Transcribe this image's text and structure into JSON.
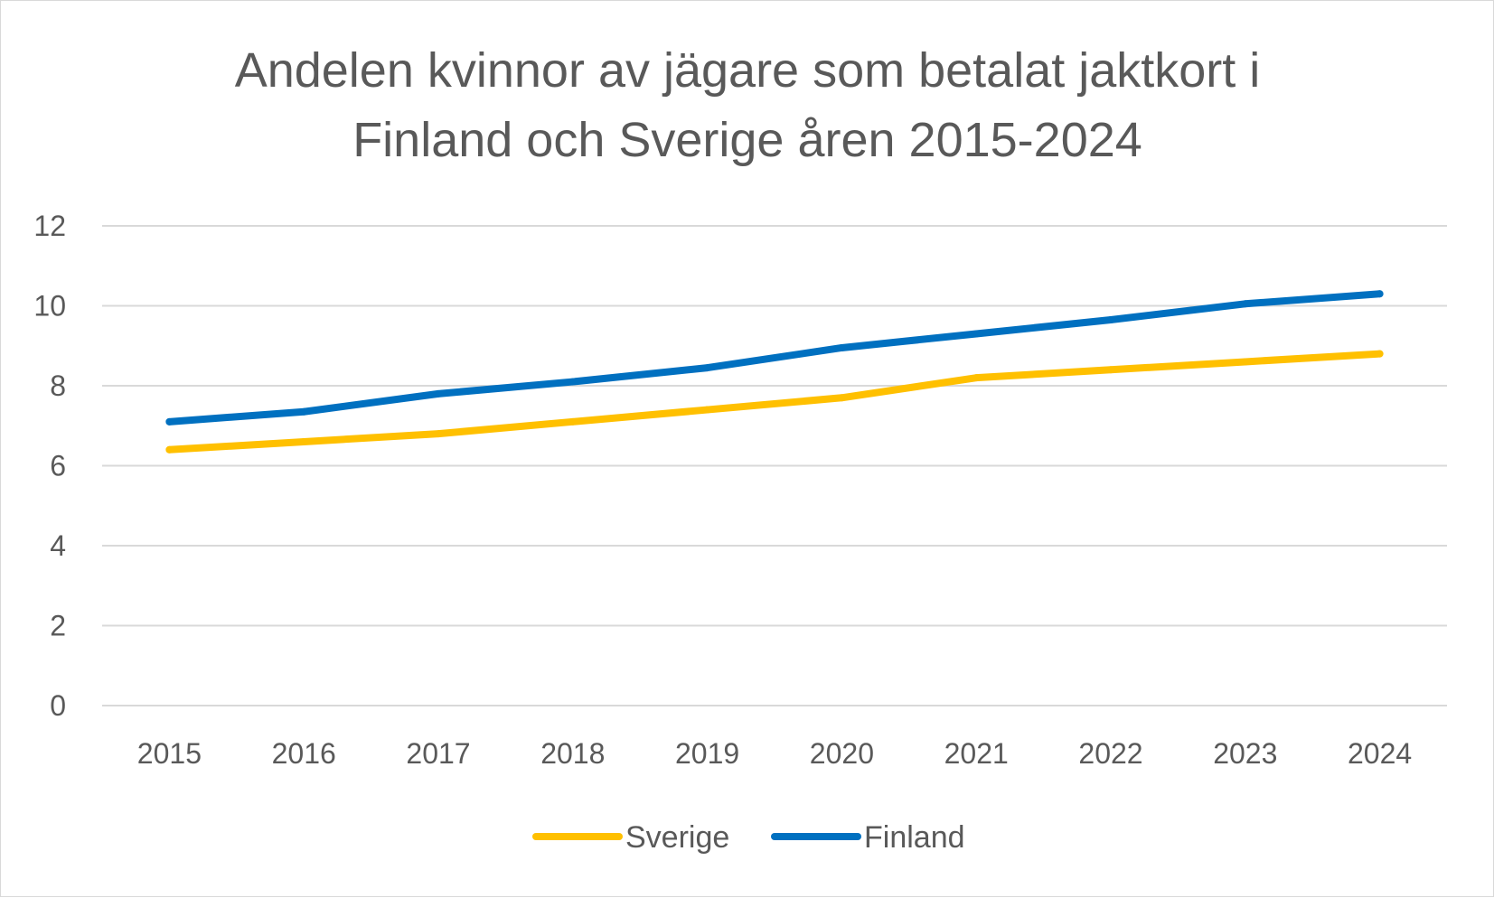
{
  "chart_data": {
    "type": "line",
    "title_lines": [
      "Andelen kvinnor av jägare som betalat jaktkort i",
      "Finland och Sverige åren 2015-2024"
    ],
    "categories": [
      "2015",
      "2016",
      "2017",
      "2018",
      "2019",
      "2020",
      "2021",
      "2022",
      "2023",
      "2024"
    ],
    "series": [
      {
        "name": "Sverige",
        "color": "#FFC000",
        "values": [
          6.4,
          6.6,
          6.8,
          7.1,
          7.4,
          7.7,
          8.2,
          8.4,
          8.6,
          8.8
        ]
      },
      {
        "name": "Finland",
        "color": "#0070C0",
        "values": [
          7.1,
          7.35,
          7.8,
          8.1,
          8.45,
          8.95,
          9.3,
          9.65,
          10.05,
          10.3
        ]
      }
    ],
    "ylim": [
      0,
      12
    ],
    "yticks": [
      "0",
      "2",
      "4",
      "6",
      "8",
      "10",
      "12"
    ],
    "grid": true,
    "legend": "bottom"
  }
}
